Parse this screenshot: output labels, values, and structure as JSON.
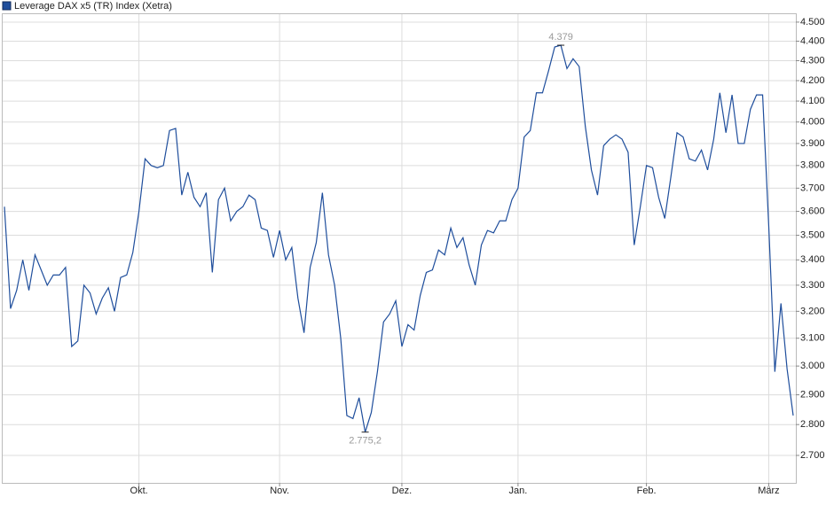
{
  "chart_data": {
    "type": "line",
    "log_y": true,
    "grid": true,
    "legend": "top-left",
    "series": [
      {
        "name": "Leverage DAX x5 (TR) Index (Xetra)",
        "color": "#1f4e9c",
        "values": [
          3620,
          3210,
          3280,
          3400,
          3280,
          3420,
          3360,
          3300,
          3340,
          3340,
          3370,
          3070,
          3090,
          3300,
          3270,
          3190,
          3250,
          3290,
          3200,
          3330,
          3340,
          3430,
          3600,
          3830,
          3800,
          3790,
          3800,
          3960,
          3970,
          3670,
          3770,
          3660,
          3620,
          3680,
          3350,
          3650,
          3700,
          3560,
          3600,
          3620,
          3670,
          3650,
          3530,
          3520,
          3410,
          3520,
          3400,
          3450,
          3250,
          3120,
          3370,
          3470,
          3680,
          3420,
          3300,
          3100,
          2830,
          2820,
          2890,
          2775.2,
          2840,
          2980,
          3160,
          3190,
          3240,
          3070,
          3150,
          3130,
          3260,
          3350,
          3360,
          3440,
          3420,
          3530,
          3450,
          3490,
          3380,
          3300,
          3460,
          3520,
          3510,
          3560,
          3560,
          3650,
          3700,
          3930,
          3960,
          4140,
          4140,
          4250,
          4370,
          4379,
          4260,
          4310,
          4270,
          3980,
          3780,
          3670,
          3890,
          3920,
          3940,
          3920,
          3860,
          3460,
          3620,
          3800,
          3790,
          3660,
          3570,
          3750,
          3950,
          3930,
          3830,
          3820,
          3870,
          3780,
          3920,
          4140,
          3950,
          4130,
          3900,
          3900,
          4060,
          4130,
          4130,
          3540,
          2980,
          3230,
          2990,
          2830
        ],
        "value_labels": [
          null,
          null,
          null,
          null,
          null,
          null,
          null,
          null,
          null,
          null,
          null,
          null,
          null,
          null,
          null,
          null,
          null,
          null,
          null,
          null,
          null,
          null,
          null,
          null,
          null,
          null,
          null,
          null,
          null,
          null,
          null,
          null,
          null,
          null,
          null,
          null,
          null,
          null,
          null,
          null,
          null,
          null,
          null,
          null,
          null,
          null,
          null,
          null,
          null,
          null,
          null,
          null,
          null,
          null,
          null,
          null,
          null,
          null,
          null,
          "2.775,2",
          null,
          null,
          null,
          null,
          null,
          null,
          null,
          null,
          null,
          null,
          null,
          null,
          null,
          null,
          null,
          null,
          null,
          null,
          null,
          null,
          null,
          null,
          null,
          null,
          null,
          null,
          null,
          null,
          null,
          null,
          null,
          "4.379",
          null,
          null,
          null,
          null,
          null,
          null,
          null,
          null,
          null,
          null,
          null,
          null,
          null,
          null,
          null,
          null,
          null,
          null,
          null,
          null,
          null,
          null,
          null,
          null,
          null,
          null,
          null,
          null,
          null,
          null,
          null,
          null,
          null,
          null,
          null,
          null,
          null,
          null
        ]
      }
    ],
    "categories": [
      null,
      null,
      null,
      null,
      null,
      null,
      null,
      null,
      null,
      null,
      null,
      null,
      null,
      null,
      null,
      null,
      null,
      null,
      null,
      null,
      null,
      null,
      "Okt.",
      null,
      null,
      null,
      null,
      null,
      null,
      null,
      null,
      null,
      null,
      null,
      null,
      null,
      null,
      null,
      null,
      null,
      null,
      null,
      null,
      null,
      null,
      "Nov.",
      null,
      null,
      null,
      null,
      null,
      null,
      null,
      null,
      null,
      null,
      null,
      null,
      null,
      null,
      null,
      null,
      null,
      null,
      null,
      "Dez.",
      null,
      null,
      null,
      null,
      null,
      null,
      null,
      null,
      null,
      null,
      null,
      null,
      null,
      null,
      null,
      null,
      null,
      null,
      "Jan.",
      null,
      null,
      null,
      null,
      null,
      null,
      null,
      null,
      null,
      null,
      null,
      null,
      null,
      null,
      null,
      null,
      null,
      null,
      null,
      null,
      "Feb.",
      null,
      null,
      null,
      null,
      null,
      null,
      null,
      null,
      null,
      null,
      null,
      null,
      null,
      null,
      null,
      null,
      null,
      null,
      null,
      "März",
      null,
      null,
      null,
      null
    ],
    "ylim": [
      2614,
      4547
    ],
    "yticks": [
      {
        "value": 2700,
        "label": "2.700"
      },
      {
        "value": 2800,
        "label": "2.800"
      },
      {
        "value": 2900,
        "label": "2.900"
      },
      {
        "value": 3000,
        "label": "3.000"
      },
      {
        "value": 3100,
        "label": "3.100"
      },
      {
        "value": 3200,
        "label": "3.200"
      },
      {
        "value": 3300,
        "label": "3.300"
      },
      {
        "value": 3400,
        "label": "3.400"
      },
      {
        "value": 3500,
        "label": "3.500"
      },
      {
        "value": 3600,
        "label": "3.600"
      },
      {
        "value": 3700,
        "label": "3.700"
      },
      {
        "value": 3800,
        "label": "3.800"
      },
      {
        "value": 3900,
        "label": "3.900"
      },
      {
        "value": 4000,
        "label": "4.000"
      },
      {
        "value": 4100,
        "label": "4.100"
      },
      {
        "value": 4200,
        "label": "4.200"
      },
      {
        "value": 4300,
        "label": "4.300"
      },
      {
        "value": 4400,
        "label": "4.400"
      },
      {
        "value": 4500,
        "label": "4.500"
      }
    ]
  }
}
